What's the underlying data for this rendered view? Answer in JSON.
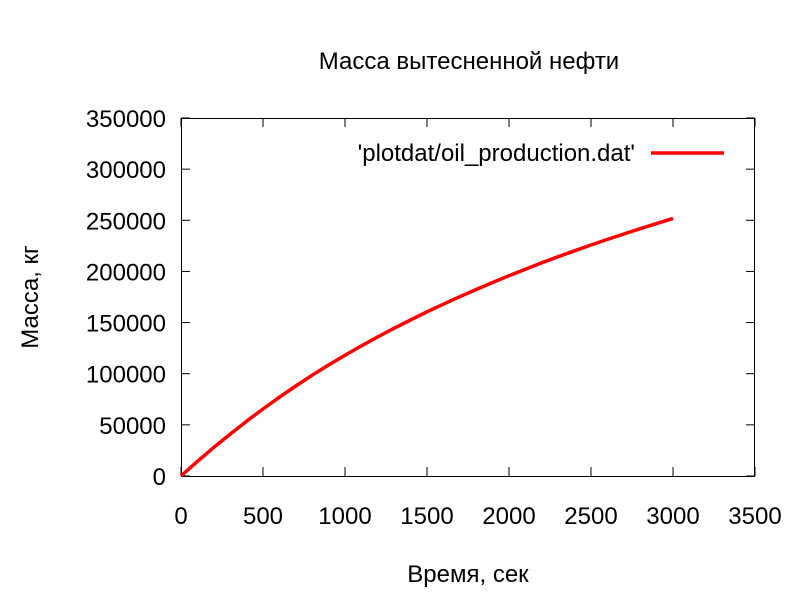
{
  "chart_data": {
    "type": "line",
    "title": "Масса вытесненной нефти",
    "xlabel": "Время, сек",
    "ylabel": "Масса, кг",
    "xlim": [
      0,
      3500
    ],
    "ylim": [
      0,
      350000
    ],
    "x_ticks": [
      "0",
      "500",
      "1000",
      "1500",
      "2000",
      "2500",
      "3000",
      "3500"
    ],
    "y_ticks": [
      "0",
      "50000",
      "100000",
      "150000",
      "200000",
      "250000",
      "300000",
      "350000"
    ],
    "grid": false,
    "legend_position": "top-right",
    "series": [
      {
        "name": "'plotdat/oil_production.dat'",
        "color": "#ff0000",
        "x": [
          0,
          100,
          200,
          300,
          400,
          500,
          600,
          700,
          800,
          900,
          1000,
          1100,
          1200,
          1300,
          1400,
          1500,
          1600,
          1700,
          1800,
          1900,
          2000,
          2100,
          2200,
          2300,
          2400,
          2500,
          2600,
          2700,
          2800,
          2900,
          3000
        ],
        "y": [
          0,
          14300,
          28000,
          41000,
          53600,
          65500,
          77000,
          88000,
          98500,
          108500,
          118000,
          127200,
          136000,
          144500,
          152600,
          160500,
          168000,
          175300,
          182300,
          189200,
          195800,
          202200,
          208400,
          214400,
          220200,
          225800,
          231300,
          236600,
          241800,
          246800,
          251800
        ]
      }
    ]
  }
}
